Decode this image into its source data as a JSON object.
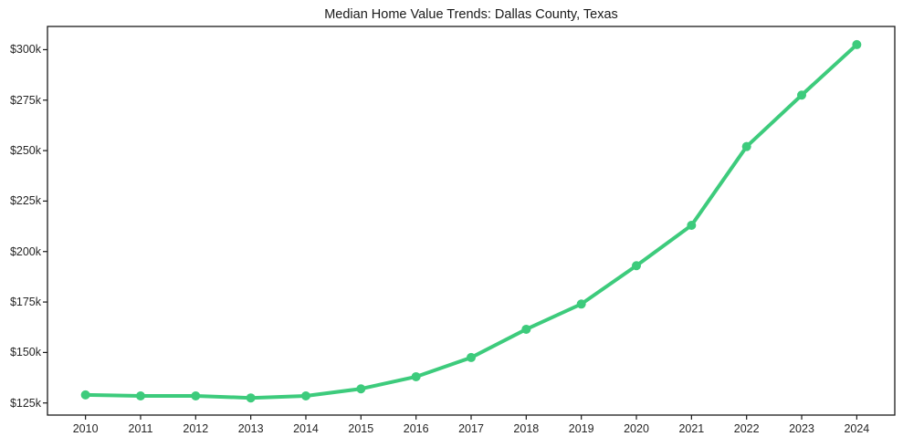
{
  "chart_data": {
    "type": "line",
    "title": "Median Home Value Trends: Dallas County, Texas",
    "xlabel": "",
    "ylabel": "",
    "x": [
      2010,
      2011,
      2012,
      2013,
      2014,
      2015,
      2016,
      2017,
      2018,
      2019,
      2020,
      2021,
      2022,
      2023,
      2024
    ],
    "series": [
      {
        "name": "Median Home Value",
        "color": "#3dcb7c",
        "values": [
          129000,
          128500,
          128500,
          127500,
          128500,
          132000,
          138000,
          147500,
          161500,
          174000,
          193000,
          213000,
          252000,
          277500,
          302500
        ]
      }
    ],
    "xticks": {
      "values": [
        2010,
        2011,
        2012,
        2013,
        2014,
        2015,
        2016,
        2017,
        2018,
        2019,
        2020,
        2021,
        2022,
        2023,
        2024
      ],
      "labels": [
        "2010",
        "2011",
        "2012",
        "2013",
        "2014",
        "2015",
        "2016",
        "2017",
        "2018",
        "2019",
        "2020",
        "2021",
        "2022",
        "2023",
        "2024"
      ]
    },
    "yticks": {
      "values": [
        125000,
        150000,
        175000,
        200000,
        225000,
        250000,
        275000,
        300000
      ],
      "labels": [
        "$125k",
        "$150k",
        "$175k",
        "$200k",
        "$225k",
        "$250k",
        "$275k",
        "$300k"
      ]
    },
    "xlim": [
      2009.31,
      2024.69
    ],
    "ylim": [
      119000,
      311500
    ],
    "grid": false,
    "legend": false,
    "marker": "circle",
    "line_width": 4,
    "marker_radius": 5
  },
  "style": {
    "background": "#ffffff",
    "axis_color": "#1a1a1a",
    "tick_text_color": "#262626",
    "title_color": "#1a1a1a"
  }
}
